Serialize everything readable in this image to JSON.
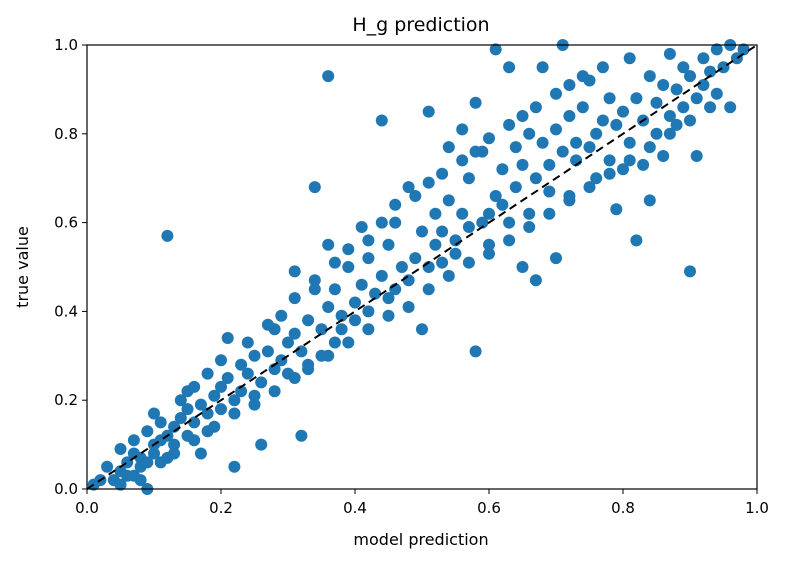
{
  "chart_data": {
    "type": "scatter",
    "title": "H_g prediction",
    "xlabel": "model prediction",
    "ylabel": "true value",
    "xlim": [
      0.0,
      1.0
    ],
    "ylim": [
      0.0,
      1.0
    ],
    "xticks": [
      "0.0",
      "0.2",
      "0.4",
      "0.6",
      "0.8",
      "1.0"
    ],
    "yticks": [
      "0.0",
      "0.2",
      "0.4",
      "0.6",
      "0.8",
      "1.0"
    ],
    "grid": false,
    "point_color": "#1f77b4",
    "reference_line": {
      "style": "dashed",
      "color": "#000000",
      "from": [
        0.0,
        0.0
      ],
      "to": [
        1.0,
        1.0
      ]
    },
    "series": [
      {
        "points": [
          [
            0.01,
            0.01
          ],
          [
            0.02,
            0.02
          ],
          [
            0.03,
            0.05
          ],
          [
            0.04,
            0.02
          ],
          [
            0.05,
            0.04
          ],
          [
            0.05,
            0.01
          ],
          [
            0.06,
            0.03
          ],
          [
            0.06,
            0.06
          ],
          [
            0.07,
            0.03
          ],
          [
            0.07,
            0.08
          ],
          [
            0.08,
            0.05
          ],
          [
            0.08,
            0.07
          ],
          [
            0.09,
            0.0
          ],
          [
            0.09,
            0.06
          ],
          [
            0.1,
            0.08
          ],
          [
            0.1,
            0.1
          ],
          [
            0.1,
            0.17
          ],
          [
            0.11,
            0.11
          ],
          [
            0.12,
            0.07
          ],
          [
            0.12,
            0.12
          ],
          [
            0.12,
            0.57
          ],
          [
            0.13,
            0.1
          ],
          [
            0.13,
            0.14
          ],
          [
            0.14,
            0.16
          ],
          [
            0.15,
            0.12
          ],
          [
            0.15,
            0.18
          ],
          [
            0.15,
            0.22
          ],
          [
            0.16,
            0.15
          ],
          [
            0.17,
            0.19
          ],
          [
            0.17,
            0.08
          ],
          [
            0.18,
            0.17
          ],
          [
            0.18,
            0.13
          ],
          [
            0.19,
            0.21
          ],
          [
            0.2,
            0.23
          ],
          [
            0.2,
            0.18
          ],
          [
            0.21,
            0.25
          ],
          [
            0.21,
            0.34
          ],
          [
            0.22,
            0.2
          ],
          [
            0.22,
            0.05
          ],
          [
            0.23,
            0.28
          ],
          [
            0.23,
            0.22
          ],
          [
            0.24,
            0.26
          ],
          [
            0.25,
            0.3
          ],
          [
            0.25,
            0.21
          ],
          [
            0.26,
            0.1
          ],
          [
            0.26,
            0.24
          ],
          [
            0.27,
            0.31
          ],
          [
            0.28,
            0.27
          ],
          [
            0.28,
            0.36
          ],
          [
            0.29,
            0.29
          ],
          [
            0.3,
            0.33
          ],
          [
            0.3,
            0.26
          ],
          [
            0.31,
            0.49
          ],
          [
            0.31,
            0.35
          ],
          [
            0.32,
            0.12
          ],
          [
            0.32,
            0.31
          ],
          [
            0.33,
            0.38
          ],
          [
            0.33,
            0.28
          ],
          [
            0.34,
            0.47
          ],
          [
            0.34,
            0.68
          ],
          [
            0.35,
            0.36
          ],
          [
            0.35,
            0.3
          ],
          [
            0.36,
            0.55
          ],
          [
            0.36,
            0.41
          ],
          [
            0.36,
            0.93
          ],
          [
            0.37,
            0.33
          ],
          [
            0.37,
            0.45
          ],
          [
            0.38,
            0.39
          ],
          [
            0.38,
            0.36
          ],
          [
            0.39,
            0.5
          ],
          [
            0.4,
            0.42
          ],
          [
            0.4,
            0.38
          ],
          [
            0.41,
            0.59
          ],
          [
            0.41,
            0.46
          ],
          [
            0.42,
            0.4
          ],
          [
            0.42,
            0.52
          ],
          [
            0.43,
            0.44
          ],
          [
            0.44,
            0.83
          ],
          [
            0.44,
            0.48
          ],
          [
            0.45,
            0.43
          ],
          [
            0.45,
            0.55
          ],
          [
            0.46,
            0.6
          ],
          [
            0.46,
            0.45
          ],
          [
            0.47,
            0.5
          ],
          [
            0.48,
            0.47
          ],
          [
            0.48,
            0.68
          ],
          [
            0.49,
            0.52
          ],
          [
            0.5,
            0.58
          ],
          [
            0.5,
            0.36
          ],
          [
            0.51,
            0.5
          ],
          [
            0.51,
            0.85
          ],
          [
            0.52,
            0.62
          ],
          [
            0.52,
            0.55
          ],
          [
            0.53,
            0.51
          ],
          [
            0.53,
            0.58
          ],
          [
            0.54,
            0.65
          ],
          [
            0.54,
            0.77
          ],
          [
            0.55,
            0.56
          ],
          [
            0.55,
            0.53
          ],
          [
            0.56,
            0.81
          ],
          [
            0.56,
            0.62
          ],
          [
            0.57,
            0.59
          ],
          [
            0.57,
            0.7
          ],
          [
            0.58,
            0.31
          ],
          [
            0.58,
            0.87
          ],
          [
            0.59,
            0.6
          ],
          [
            0.59,
            0.76
          ],
          [
            0.6,
            0.62
          ],
          [
            0.6,
            0.55
          ],
          [
            0.61,
            0.66
          ],
          [
            0.61,
            0.99
          ],
          [
            0.62,
            0.64
          ],
          [
            0.62,
            0.72
          ],
          [
            0.63,
            0.95
          ],
          [
            0.63,
            0.6
          ],
          [
            0.64,
            0.68
          ],
          [
            0.64,
            0.77
          ],
          [
            0.65,
            0.73
          ],
          [
            0.65,
            0.5
          ],
          [
            0.66,
            0.62
          ],
          [
            0.66,
            0.8
          ],
          [
            0.67,
            0.7
          ],
          [
            0.67,
            0.47
          ],
          [
            0.68,
            0.78
          ],
          [
            0.68,
            0.95
          ],
          [
            0.69,
            0.73
          ],
          [
            0.69,
            0.67
          ],
          [
            0.7,
            0.81
          ],
          [
            0.7,
            0.52
          ],
          [
            0.71,
            0.76
          ],
          [
            0.71,
            1.0
          ],
          [
            0.72,
            0.84
          ],
          [
            0.72,
            0.65
          ],
          [
            0.73,
            0.78
          ],
          [
            0.73,
            0.74
          ],
          [
            0.74,
            0.86
          ],
          [
            0.75,
            0.77
          ],
          [
            0.75,
            0.92
          ],
          [
            0.76,
            0.8
          ],
          [
            0.76,
            0.7
          ],
          [
            0.77,
            0.83
          ],
          [
            0.77,
            0.95
          ],
          [
            0.78,
            0.88
          ],
          [
            0.78,
            0.74
          ],
          [
            0.79,
            0.82
          ],
          [
            0.79,
            0.63
          ],
          [
            0.8,
            0.85
          ],
          [
            0.8,
            0.72
          ],
          [
            0.81,
            0.78
          ],
          [
            0.81,
            0.97
          ],
          [
            0.82,
            0.88
          ],
          [
            0.82,
            0.56
          ],
          [
            0.83,
            0.83
          ],
          [
            0.83,
            0.73
          ],
          [
            0.84,
            0.93
          ],
          [
            0.84,
            0.65
          ],
          [
            0.85,
            0.87
          ],
          [
            0.85,
            0.8
          ],
          [
            0.86,
            0.91
          ],
          [
            0.86,
            0.75
          ],
          [
            0.87,
            0.98
          ],
          [
            0.87,
            0.84
          ],
          [
            0.88,
            0.9
          ],
          [
            0.88,
            0.82
          ],
          [
            0.89,
            0.95
          ],
          [
            0.89,
            0.86
          ],
          [
            0.9,
            0.49
          ],
          [
            0.9,
            0.93
          ],
          [
            0.91,
            0.88
          ],
          [
            0.91,
            0.75
          ],
          [
            0.92,
            0.97
          ],
          [
            0.92,
            0.91
          ],
          [
            0.93,
            0.94
          ],
          [
            0.94,
            0.89
          ],
          [
            0.94,
            0.99
          ],
          [
            0.95,
            0.95
          ],
          [
            0.96,
            0.86
          ],
          [
            0.96,
            1.0
          ],
          [
            0.97,
            0.97
          ],
          [
            0.98,
            0.99
          ],
          [
            0.05,
            0.09
          ],
          [
            0.07,
            0.11
          ],
          [
            0.09,
            0.13
          ],
          [
            0.11,
            0.15
          ],
          [
            0.14,
            0.2
          ],
          [
            0.16,
            0.23
          ],
          [
            0.18,
            0.26
          ],
          [
            0.2,
            0.29
          ],
          [
            0.24,
            0.33
          ],
          [
            0.27,
            0.37
          ],
          [
            0.29,
            0.39
          ],
          [
            0.31,
            0.43
          ],
          [
            0.34,
            0.45
          ],
          [
            0.37,
            0.51
          ],
          [
            0.39,
            0.54
          ],
          [
            0.42,
            0.56
          ],
          [
            0.44,
            0.6
          ],
          [
            0.46,
            0.64
          ],
          [
            0.49,
            0.66
          ],
          [
            0.51,
            0.69
          ],
          [
            0.53,
            0.71
          ],
          [
            0.56,
            0.74
          ],
          [
            0.58,
            0.76
          ],
          [
            0.6,
            0.79
          ],
          [
            0.63,
            0.82
          ],
          [
            0.65,
            0.84
          ],
          [
            0.67,
            0.86
          ],
          [
            0.7,
            0.89
          ],
          [
            0.72,
            0.91
          ],
          [
            0.74,
            0.93
          ],
          [
            0.08,
            0.02
          ],
          [
            0.11,
            0.06
          ],
          [
            0.13,
            0.08
          ],
          [
            0.16,
            0.11
          ],
          [
            0.19,
            0.14
          ],
          [
            0.22,
            0.17
          ],
          [
            0.25,
            0.19
          ],
          [
            0.28,
            0.22
          ],
          [
            0.31,
            0.25
          ],
          [
            0.33,
            0.27
          ],
          [
            0.36,
            0.3
          ],
          [
            0.39,
            0.33
          ],
          [
            0.42,
            0.36
          ],
          [
            0.45,
            0.39
          ],
          [
            0.48,
            0.41
          ],
          [
            0.51,
            0.45
          ],
          [
            0.54,
            0.48
          ],
          [
            0.57,
            0.51
          ],
          [
            0.6,
            0.53
          ],
          [
            0.63,
            0.56
          ],
          [
            0.66,
            0.59
          ],
          [
            0.69,
            0.62
          ],
          [
            0.72,
            0.66
          ],
          [
            0.75,
            0.68
          ],
          [
            0.78,
            0.71
          ],
          [
            0.81,
            0.74
          ],
          [
            0.84,
            0.77
          ],
          [
            0.87,
            0.8
          ],
          [
            0.9,
            0.83
          ],
          [
            0.93,
            0.86
          ]
        ]
      }
    ]
  }
}
